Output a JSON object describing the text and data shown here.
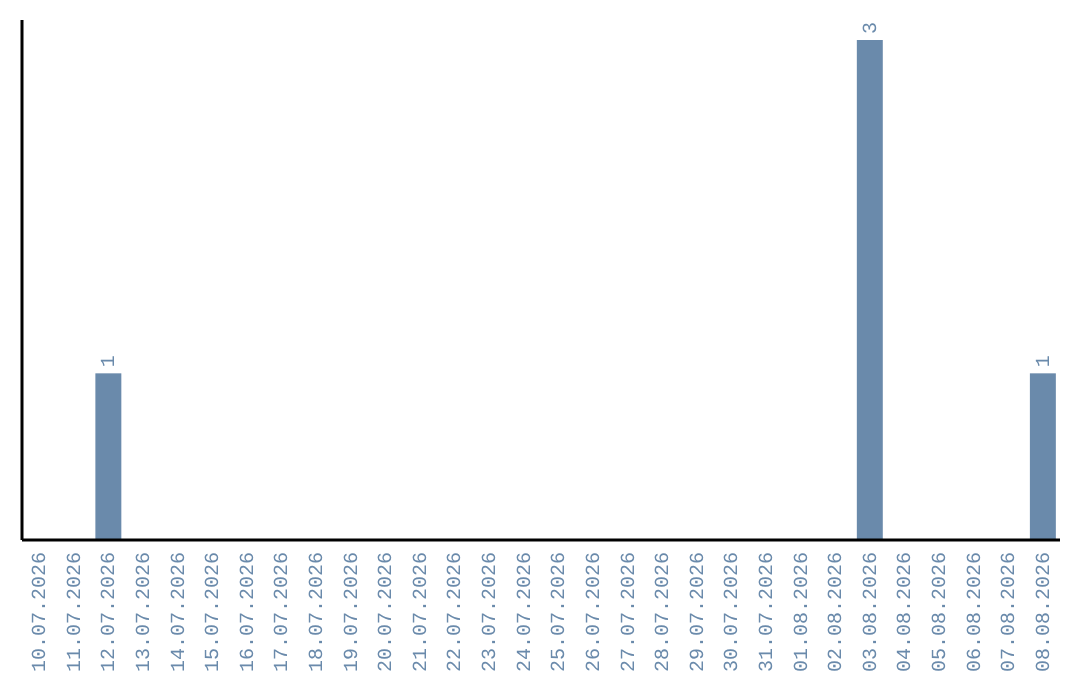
{
  "chart_data": {
    "type": "bar",
    "categories": [
      "10.07.2026",
      "11.07.2026",
      "12.07.2026",
      "13.07.2026",
      "14.07.2026",
      "15.07.2026",
      "16.07.2026",
      "17.07.2026",
      "18.07.2026",
      "19.07.2026",
      "20.07.2026",
      "21.07.2026",
      "22.07.2026",
      "23.07.2026",
      "24.07.2026",
      "25.07.2026",
      "26.07.2026",
      "27.07.2026",
      "28.07.2026",
      "29.07.2026",
      "30.07.2026",
      "31.07.2026",
      "01.08.2026",
      "02.08.2026",
      "03.08.2026",
      "04.08.2026",
      "05.08.2026",
      "06.08.2026",
      "07.08.2026",
      "08.08.2026"
    ],
    "values": [
      0,
      0,
      1,
      0,
      0,
      0,
      0,
      0,
      0,
      0,
      0,
      0,
      0,
      0,
      0,
      0,
      0,
      0,
      0,
      0,
      0,
      0,
      0,
      0,
      3,
      0,
      0,
      0,
      0,
      1
    ],
    "value_labels": [
      null,
      null,
      "1",
      null,
      null,
      null,
      null,
      null,
      null,
      null,
      null,
      null,
      null,
      null,
      null,
      null,
      null,
      null,
      null,
      null,
      null,
      null,
      null,
      null,
      "3",
      null,
      null,
      null,
      null,
      "1"
    ],
    "color": "#6a8aab",
    "ylim": [
      0,
      3.12
    ],
    "tick_labels": "x"
  }
}
